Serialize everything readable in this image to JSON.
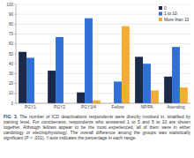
{
  "chart_data": {
    "type": "bar",
    "categories": [
      "PGY1",
      "PGY2",
      "PGY3/4",
      "Fellow",
      "NP/PA",
      "Attending"
    ],
    "series": [
      {
        "name": "0",
        "color": "#1c2a4a",
        "values": [
          52,
          33,
          11,
          0,
          47,
          27
        ]
      },
      {
        "name": "1 to 10",
        "color": "#2f6fd6",
        "values": [
          46,
          67,
          86,
          22,
          40,
          57
        ]
      },
      {
        "name": "More than 10",
        "color": "#f2ad33",
        "values": [
          0,
          0,
          3,
          78,
          13,
          16
        ]
      }
    ],
    "ylim": [
      0,
      100
    ],
    "yticks": [
      0,
      10,
      20,
      30,
      40,
      50,
      60,
      70,
      80,
      90,
      100
    ],
    "grid": true,
    "legend": "top-right",
    "caption": "FIG. 3. The number of ICD deactivations respondents were directly involved in, stratified by training level. For conciseness, respondents who answered 1 to 5 and 5 to 10 are shown together. Although fellows appear to be the most experienced, all of them were in either cardiology or electrophysiology. The overall difference among the groups was statistically significant (P < .001). Y-axis indicates the percentage in each range."
  }
}
